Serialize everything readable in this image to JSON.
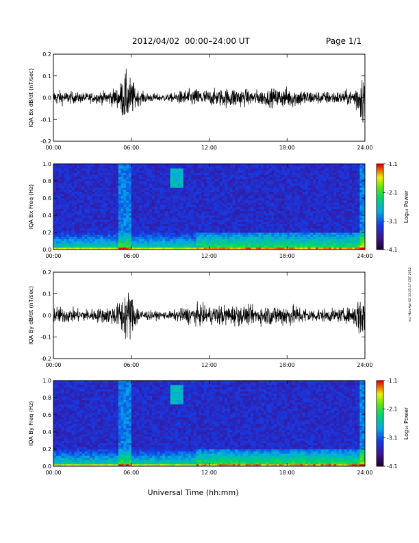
{
  "header": {
    "title": "2012/04/02  00:00–24:00 UT",
    "page": "Page 1/1"
  },
  "side_note": "mcl Mon Apr 02 13:25:17 CST 2012",
  "xlabel": "Universal Time (hh:mm)",
  "colorbar": {
    "label": "Log₁₀ Power",
    "ticks": [
      "-1.1",
      "-2.1",
      "-3.1",
      "-4.1"
    ],
    "values": [
      -1.1,
      -2.1,
      -3.1,
      -4.1
    ]
  },
  "chart_data": [
    {
      "type": "line",
      "name": "bx-derivative",
      "ylabel": "IQA Bx dB/dt (nT/sec)",
      "x_ticks": [
        "00:00",
        "06:00",
        "12:00",
        "18:00",
        "24:00"
      ],
      "xlim": [
        0,
        24
      ],
      "ylim": [
        -0.2,
        0.2
      ],
      "y_ticks": [
        "0.2",
        "0.1",
        "0.0",
        "-0.1",
        "-0.2"
      ],
      "envelope": {
        "t": [
          0,
          1,
          2,
          3,
          4,
          5,
          5.5,
          6,
          6.5,
          7,
          8,
          9,
          10,
          11,
          12,
          13,
          14,
          15,
          16,
          17,
          18,
          19,
          20,
          21,
          22,
          23,
          23.8,
          24
        ],
        "amp": [
          0.06,
          0.05,
          0.04,
          0.04,
          0.05,
          0.08,
          0.2,
          0.15,
          0.06,
          0.04,
          0.03,
          0.03,
          0.06,
          0.07,
          0.06,
          0.07,
          0.08,
          0.06,
          0.06,
          0.07,
          0.08,
          0.07,
          0.05,
          0.05,
          0.05,
          0.06,
          0.2,
          0.2
        ]
      }
    },
    {
      "type": "heatmap",
      "name": "bx-spectrogram",
      "ylabel": "IQA Bx Freq (Hz)",
      "x_ticks": [
        "00:00",
        "06:00",
        "12:00",
        "18:00",
        "24:00"
      ],
      "xlim": [
        0,
        24
      ],
      "ylim": [
        0.0,
        1.0
      ],
      "y_ticks": [
        "1.0",
        "0.8",
        "0.6",
        "0.4",
        "0.2",
        "0.0"
      ],
      "zlim": [
        -4.1,
        -1.1
      ]
    },
    {
      "type": "line",
      "name": "by-derivative",
      "ylabel": "IQA By dB/dt (nT/sec)",
      "x_ticks": [
        "00:00",
        "06:00",
        "12:00",
        "18:00",
        "24:00"
      ],
      "xlim": [
        0,
        24
      ],
      "ylim": [
        -0.2,
        0.2
      ],
      "y_ticks": [
        "0.2",
        "0.1",
        "0.0",
        "-0.1",
        "-0.2"
      ],
      "envelope": {
        "t": [
          0,
          1,
          2,
          3,
          4,
          5,
          5.5,
          6,
          6.5,
          7,
          8,
          9,
          10,
          11,
          12,
          13,
          14,
          15,
          16,
          17,
          18,
          19,
          20,
          21,
          22,
          23,
          23.8,
          24
        ],
        "amp": [
          0.07,
          0.06,
          0.05,
          0.05,
          0.06,
          0.09,
          0.2,
          0.18,
          0.07,
          0.04,
          0.03,
          0.03,
          0.06,
          0.08,
          0.07,
          0.08,
          0.08,
          0.07,
          0.07,
          0.08,
          0.09,
          0.07,
          0.05,
          0.05,
          0.05,
          0.06,
          0.2,
          0.2
        ]
      }
    },
    {
      "type": "heatmap",
      "name": "by-spectrogram",
      "ylabel": "IQA By Freq (Hz)",
      "x_ticks": [
        "00:00",
        "06:00",
        "12:00",
        "18:00",
        "24:00"
      ],
      "xlim": [
        0,
        24
      ],
      "ylim": [
        0.0,
        1.0
      ],
      "y_ticks": [
        "1.0",
        "0.8",
        "0.6",
        "0.4",
        "0.2",
        "0.0"
      ],
      "zlim": [
        -4.1,
        -1.1
      ]
    }
  ]
}
